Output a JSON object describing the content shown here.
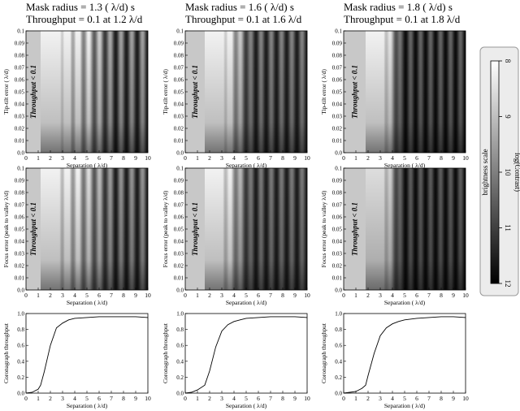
{
  "panel_titles": [
    {
      "mask": "Mask radius = 1.3 ( λ/d) s",
      "throughput": "Throughput = 0.1 at 1.2 λ/d"
    },
    {
      "mask": "Mask radius = 1.6 ( λ/d) s",
      "throughput": "Throughput = 0.1 at 1.6 λ/d"
    },
    {
      "mask": "Mask radius = 1.8 ( λ/d) s",
      "throughput": "Throughput = 0.1 at 1.8 λ/d"
    }
  ],
  "colorbar": {
    "title": "brightness scale",
    "label": "log(Contrast)",
    "ticks": [
      "8",
      "9",
      "10",
      "11",
      "12"
    ],
    "range": [
      8,
      12
    ],
    "colors": {
      "low": "#000000",
      "high": "#ffffff",
      "frame": "#e8e8e8"
    }
  },
  "chart_data": [
    {
      "type": "heatmap",
      "row": "tip-tilt",
      "ylabel": "Tip-tilt error ( λ/d)",
      "xlabel": "Separation ( λ/d)",
      "annotation": "Throughput < 0.1",
      "mask_limit": 1.2,
      "xlim": [
        0,
        10
      ],
      "ylim": [
        0,
        0.1
      ],
      "xticks": [
        "0",
        "1",
        "2",
        "3",
        "4",
        "5",
        "6",
        "7",
        "8",
        "9",
        "10"
      ],
      "yticks": [
        "0.0",
        "0.01",
        "0.02",
        "0.03",
        "0.04",
        "0.05",
        "0.06",
        "0.07",
        "0.08",
        "0.09",
        "0.1"
      ]
    },
    {
      "type": "heatmap",
      "row": "tip-tilt",
      "ylabel": "Tip-tilt error ( λ/d)",
      "xlabel": "Separation ( λ/d)",
      "annotation": "Throughput < 0.1",
      "mask_limit": 1.6,
      "xlim": [
        0,
        10
      ],
      "ylim": [
        0,
        0.1
      ],
      "xticks": [
        "0",
        "1",
        "2",
        "3",
        "4",
        "5",
        "6",
        "7",
        "8",
        "9",
        "10"
      ],
      "yticks": [
        "0.0",
        "0.01",
        "0.02",
        "0.03",
        "0.04",
        "0.05",
        "0.06",
        "0.07",
        "0.08",
        "0.09",
        "0.1"
      ]
    },
    {
      "type": "heatmap",
      "row": "tip-tilt",
      "ylabel": "Tip-tilt error ( λ/d)",
      "xlabel": "Separation ( λ/d)",
      "annotation": "Throughput < 0.1",
      "mask_limit": 1.8,
      "xlim": [
        0,
        10
      ],
      "ylim": [
        0,
        0.1
      ],
      "xticks": [
        "0",
        "1",
        "2",
        "3",
        "4",
        "5",
        "6",
        "7",
        "8",
        "9",
        "10"
      ],
      "yticks": [
        "0.0",
        "0.01",
        "0.02",
        "0.03",
        "0.04",
        "0.05",
        "0.06",
        "0.07",
        "0.08",
        "0.09",
        "0.1"
      ]
    },
    {
      "type": "heatmap",
      "row": "focus",
      "ylabel": "Focus error (peak to valley λ/d)",
      "xlabel": "Separation ( λ/d)",
      "annotation": "Throughput < 0.1",
      "mask_limit": 1.2,
      "xlim": [
        0,
        10
      ],
      "ylim": [
        0,
        0.1
      ],
      "xticks": [
        "0",
        "1",
        "2",
        "3",
        "4",
        "5",
        "6",
        "7",
        "8",
        "9",
        "10"
      ],
      "yticks": [
        "0.0",
        "0.01",
        "0.02",
        "0.03",
        "0.04",
        "0.05",
        "0.06",
        "0.07",
        "0.08",
        "0.09",
        "0.1"
      ]
    },
    {
      "type": "heatmap",
      "row": "focus",
      "ylabel": "Focus error (peak to valley λ/d)",
      "xlabel": "Separation ( λ/d)",
      "annotation": "Throughput < 0.1",
      "mask_limit": 1.6,
      "xlim": [
        0,
        10
      ],
      "ylim": [
        0,
        0.1
      ],
      "xticks": [
        "0",
        "1",
        "2",
        "3",
        "4",
        "5",
        "6",
        "7",
        "8",
        "9",
        "10"
      ],
      "yticks": [
        "0.0",
        "0.01",
        "0.02",
        "0.03",
        "0.04",
        "0.05",
        "0.06",
        "0.07",
        "0.08",
        "0.09",
        "0.1"
      ]
    },
    {
      "type": "heatmap",
      "row": "focus",
      "ylabel": "Focus error (peak to valley λ/d)",
      "xlabel": "Separation ( λ/d)",
      "annotation": "Throughput < 0.1",
      "mask_limit": 1.8,
      "xlim": [
        0,
        10
      ],
      "ylim": [
        0,
        0.1
      ],
      "xticks": [
        "0",
        "1",
        "2",
        "3",
        "4",
        "5",
        "6",
        "7",
        "8",
        "9",
        "10"
      ],
      "yticks": [
        "0.0",
        "0.01",
        "0.02",
        "0.03",
        "0.04",
        "0.05",
        "0.06",
        "0.07",
        "0.08",
        "0.09",
        "0.1"
      ]
    },
    {
      "type": "line",
      "row": "throughput",
      "ylabel": "Coronagraph throughput",
      "xlabel": "Separation ( λ/d)",
      "xlim": [
        0,
        10
      ],
      "ylim": [
        0,
        1.0
      ],
      "xticks": [
        "0",
        "1",
        "2",
        "3",
        "4",
        "5",
        "6",
        "7",
        "8",
        "9",
        "10"
      ],
      "yticks": [
        "0.0",
        "0.2",
        "0.4",
        "0.6",
        "0.8",
        "1.0"
      ],
      "x": [
        0,
        0.5,
        1.0,
        1.2,
        1.5,
        2.0,
        2.5,
        3.0,
        3.5,
        4.0,
        5.0,
        6.0,
        7.0,
        8.0,
        9.0,
        10.0
      ],
      "y": [
        0.0,
        0.01,
        0.05,
        0.1,
        0.27,
        0.6,
        0.82,
        0.88,
        0.92,
        0.94,
        0.95,
        0.96,
        0.96,
        0.96,
        0.96,
        0.95
      ]
    },
    {
      "type": "line",
      "row": "throughput",
      "ylabel": "Coronagraph throughput",
      "xlabel": "Separation ( λ/d)",
      "xlim": [
        0,
        10
      ],
      "ylim": [
        0,
        1.0
      ],
      "xticks": [
        "0",
        "1",
        "2",
        "3",
        "4",
        "5",
        "6",
        "7",
        "8",
        "9",
        "10"
      ],
      "yticks": [
        "0.0",
        "0.2",
        "0.4",
        "0.6",
        "0.8",
        "1.0"
      ],
      "x": [
        0,
        0.5,
        1.0,
        1.6,
        2.0,
        2.5,
        3.0,
        3.5,
        4.0,
        4.5,
        5.0,
        6.0,
        7.0,
        8.0,
        9.0,
        10.0
      ],
      "y": [
        0.0,
        0.01,
        0.04,
        0.1,
        0.28,
        0.58,
        0.78,
        0.86,
        0.9,
        0.92,
        0.94,
        0.95,
        0.96,
        0.96,
        0.96,
        0.95
      ]
    },
    {
      "type": "line",
      "row": "throughput",
      "ylabel": "Coronagraph throughput",
      "xlabel": "Separation ( λ/d)",
      "xlim": [
        0,
        10
      ],
      "ylim": [
        0,
        1.0
      ],
      "xticks": [
        "0",
        "1",
        "2",
        "3",
        "4",
        "5",
        "6",
        "7",
        "8",
        "9",
        "10"
      ],
      "yticks": [
        "0.0",
        "0.2",
        "0.4",
        "0.6",
        "0.8",
        "1.0"
      ],
      "x": [
        0,
        0.5,
        1.0,
        1.5,
        1.8,
        2.0,
        2.5,
        3.0,
        3.5,
        4.0,
        4.5,
        5.0,
        6.0,
        7.0,
        8.0,
        9.0,
        10.0
      ],
      "y": [
        0.0,
        0.01,
        0.02,
        0.06,
        0.1,
        0.22,
        0.5,
        0.72,
        0.82,
        0.87,
        0.9,
        0.92,
        0.94,
        0.95,
        0.96,
        0.96,
        0.95
      ]
    }
  ]
}
